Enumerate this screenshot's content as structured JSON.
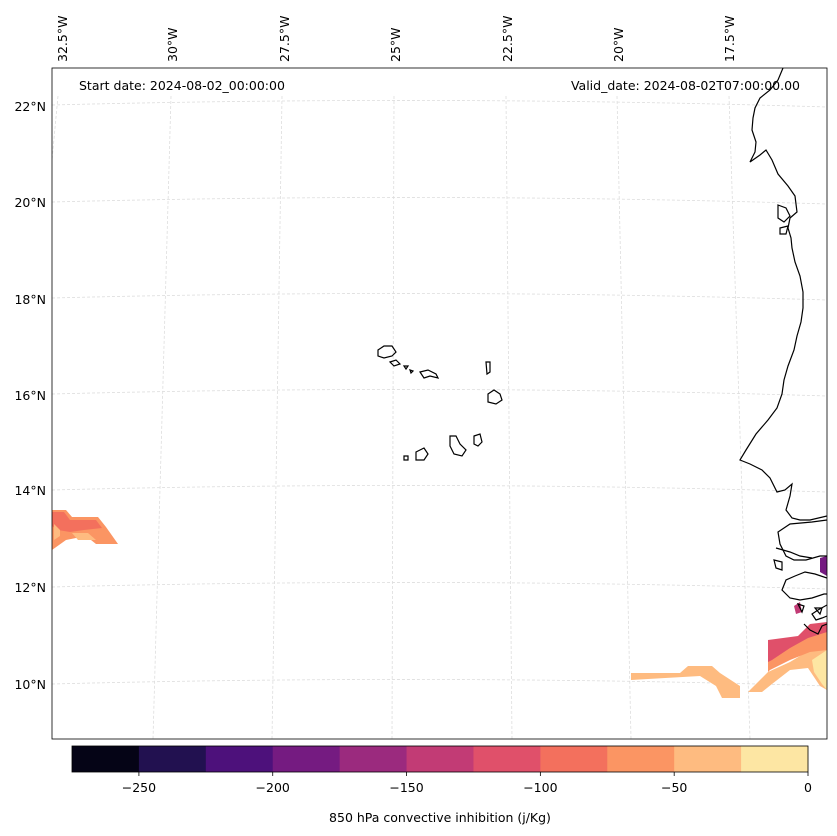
{
  "map": {
    "start_date": "Start date: 2024-08-02_00:00:00",
    "valid_date": "Valid_date: 2024-08-02T07:00:00.00",
    "lon_labels": [
      "32.5°W",
      "30°W",
      "27.5°W",
      "25°W",
      "22.5°W",
      "20°W",
      "17.5°W"
    ],
    "lat_labels": [
      "22°N",
      "20°N",
      "18°N",
      "16°N",
      "14°N",
      "12°N",
      "10°N"
    ],
    "coastline_color": "#000000",
    "gridline_color": "#dddddd",
    "field_name": "850 hPa convective inhibition"
  },
  "colorbar": {
    "label": "850 hPa convective inhibition (j/Kg)",
    "tick_labels": [
      "−250",
      "−200",
      "−150",
      "−100",
      "−50",
      "0"
    ],
    "bins": [
      -275,
      -250,
      -225,
      -200,
      -175,
      -150,
      -125,
      -100,
      -75,
      -50,
      -25,
      0
    ],
    "colors": [
      "#050416",
      "#221150",
      "#4d117b",
      "#751b81",
      "#9b2a7e",
      "#c23b75",
      "#e0506a",
      "#f3705d",
      "#fb9563",
      "#febb80",
      "#fde6a3"
    ],
    "colormap": "magma"
  }
}
